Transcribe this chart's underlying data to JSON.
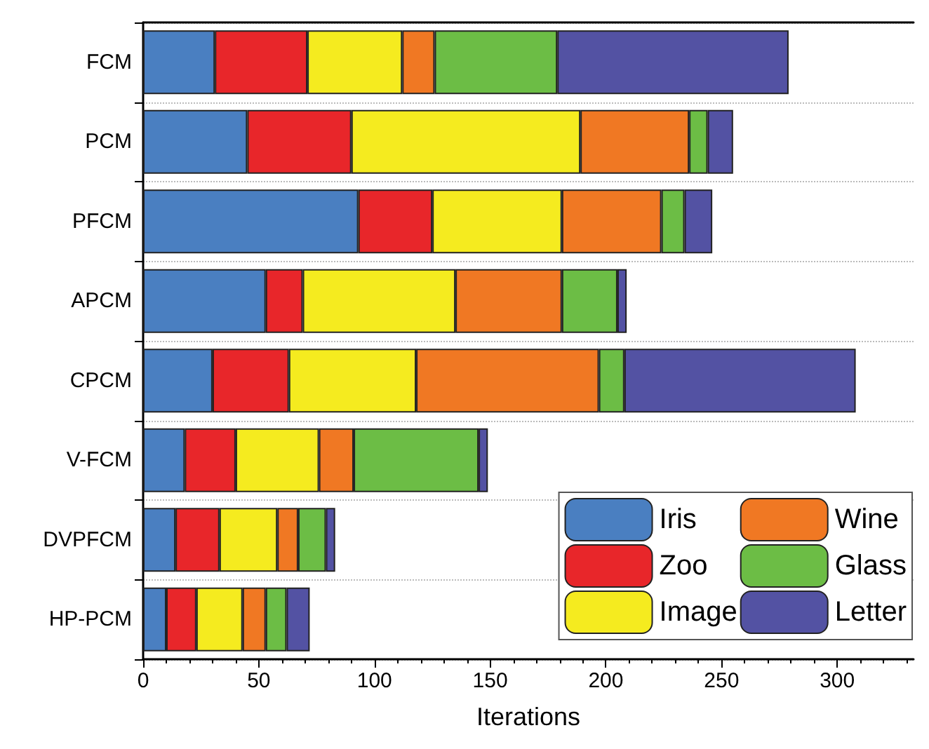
{
  "chart_data": {
    "type": "bar",
    "orientation": "horizontal",
    "stacked": true,
    "xlabel": "Iterations",
    "categories": [
      "FCM",
      "PCM",
      "PFCM",
      "APCM",
      "CPCM",
      "V-FCM",
      "DVPFCM",
      "HP-PCM"
    ],
    "series": [
      {
        "name": "Iris",
        "color": "#4a7fc1",
        "values": [
          31,
          45,
          93,
          53,
          30,
          18,
          14,
          10
        ]
      },
      {
        "name": "Zoo",
        "color": "#e8262a",
        "values": [
          40,
          45,
          32,
          16,
          33,
          22,
          19,
          13
        ]
      },
      {
        "name": "Image",
        "color": "#f5eb1f",
        "values": [
          41,
          99,
          56,
          66,
          55,
          36,
          25,
          20
        ]
      },
      {
        "name": "Wine",
        "color": "#f07823",
        "values": [
          14,
          47,
          43,
          46,
          79,
          15,
          9,
          10
        ]
      },
      {
        "name": "Glass",
        "color": "#6cbd45",
        "values": [
          53,
          8,
          10,
          24,
          11,
          54,
          12,
          9
        ]
      },
      {
        "name": "Letter",
        "color": "#5352a3",
        "values": [
          100,
          11,
          12,
          4,
          100,
          4,
          4,
          10
        ]
      }
    ],
    "xlim": [
      0,
      333
    ],
    "xticks": [
      0,
      50,
      100,
      150,
      200,
      250,
      300
    ],
    "grid": "y",
    "legend": "bottom right"
  }
}
